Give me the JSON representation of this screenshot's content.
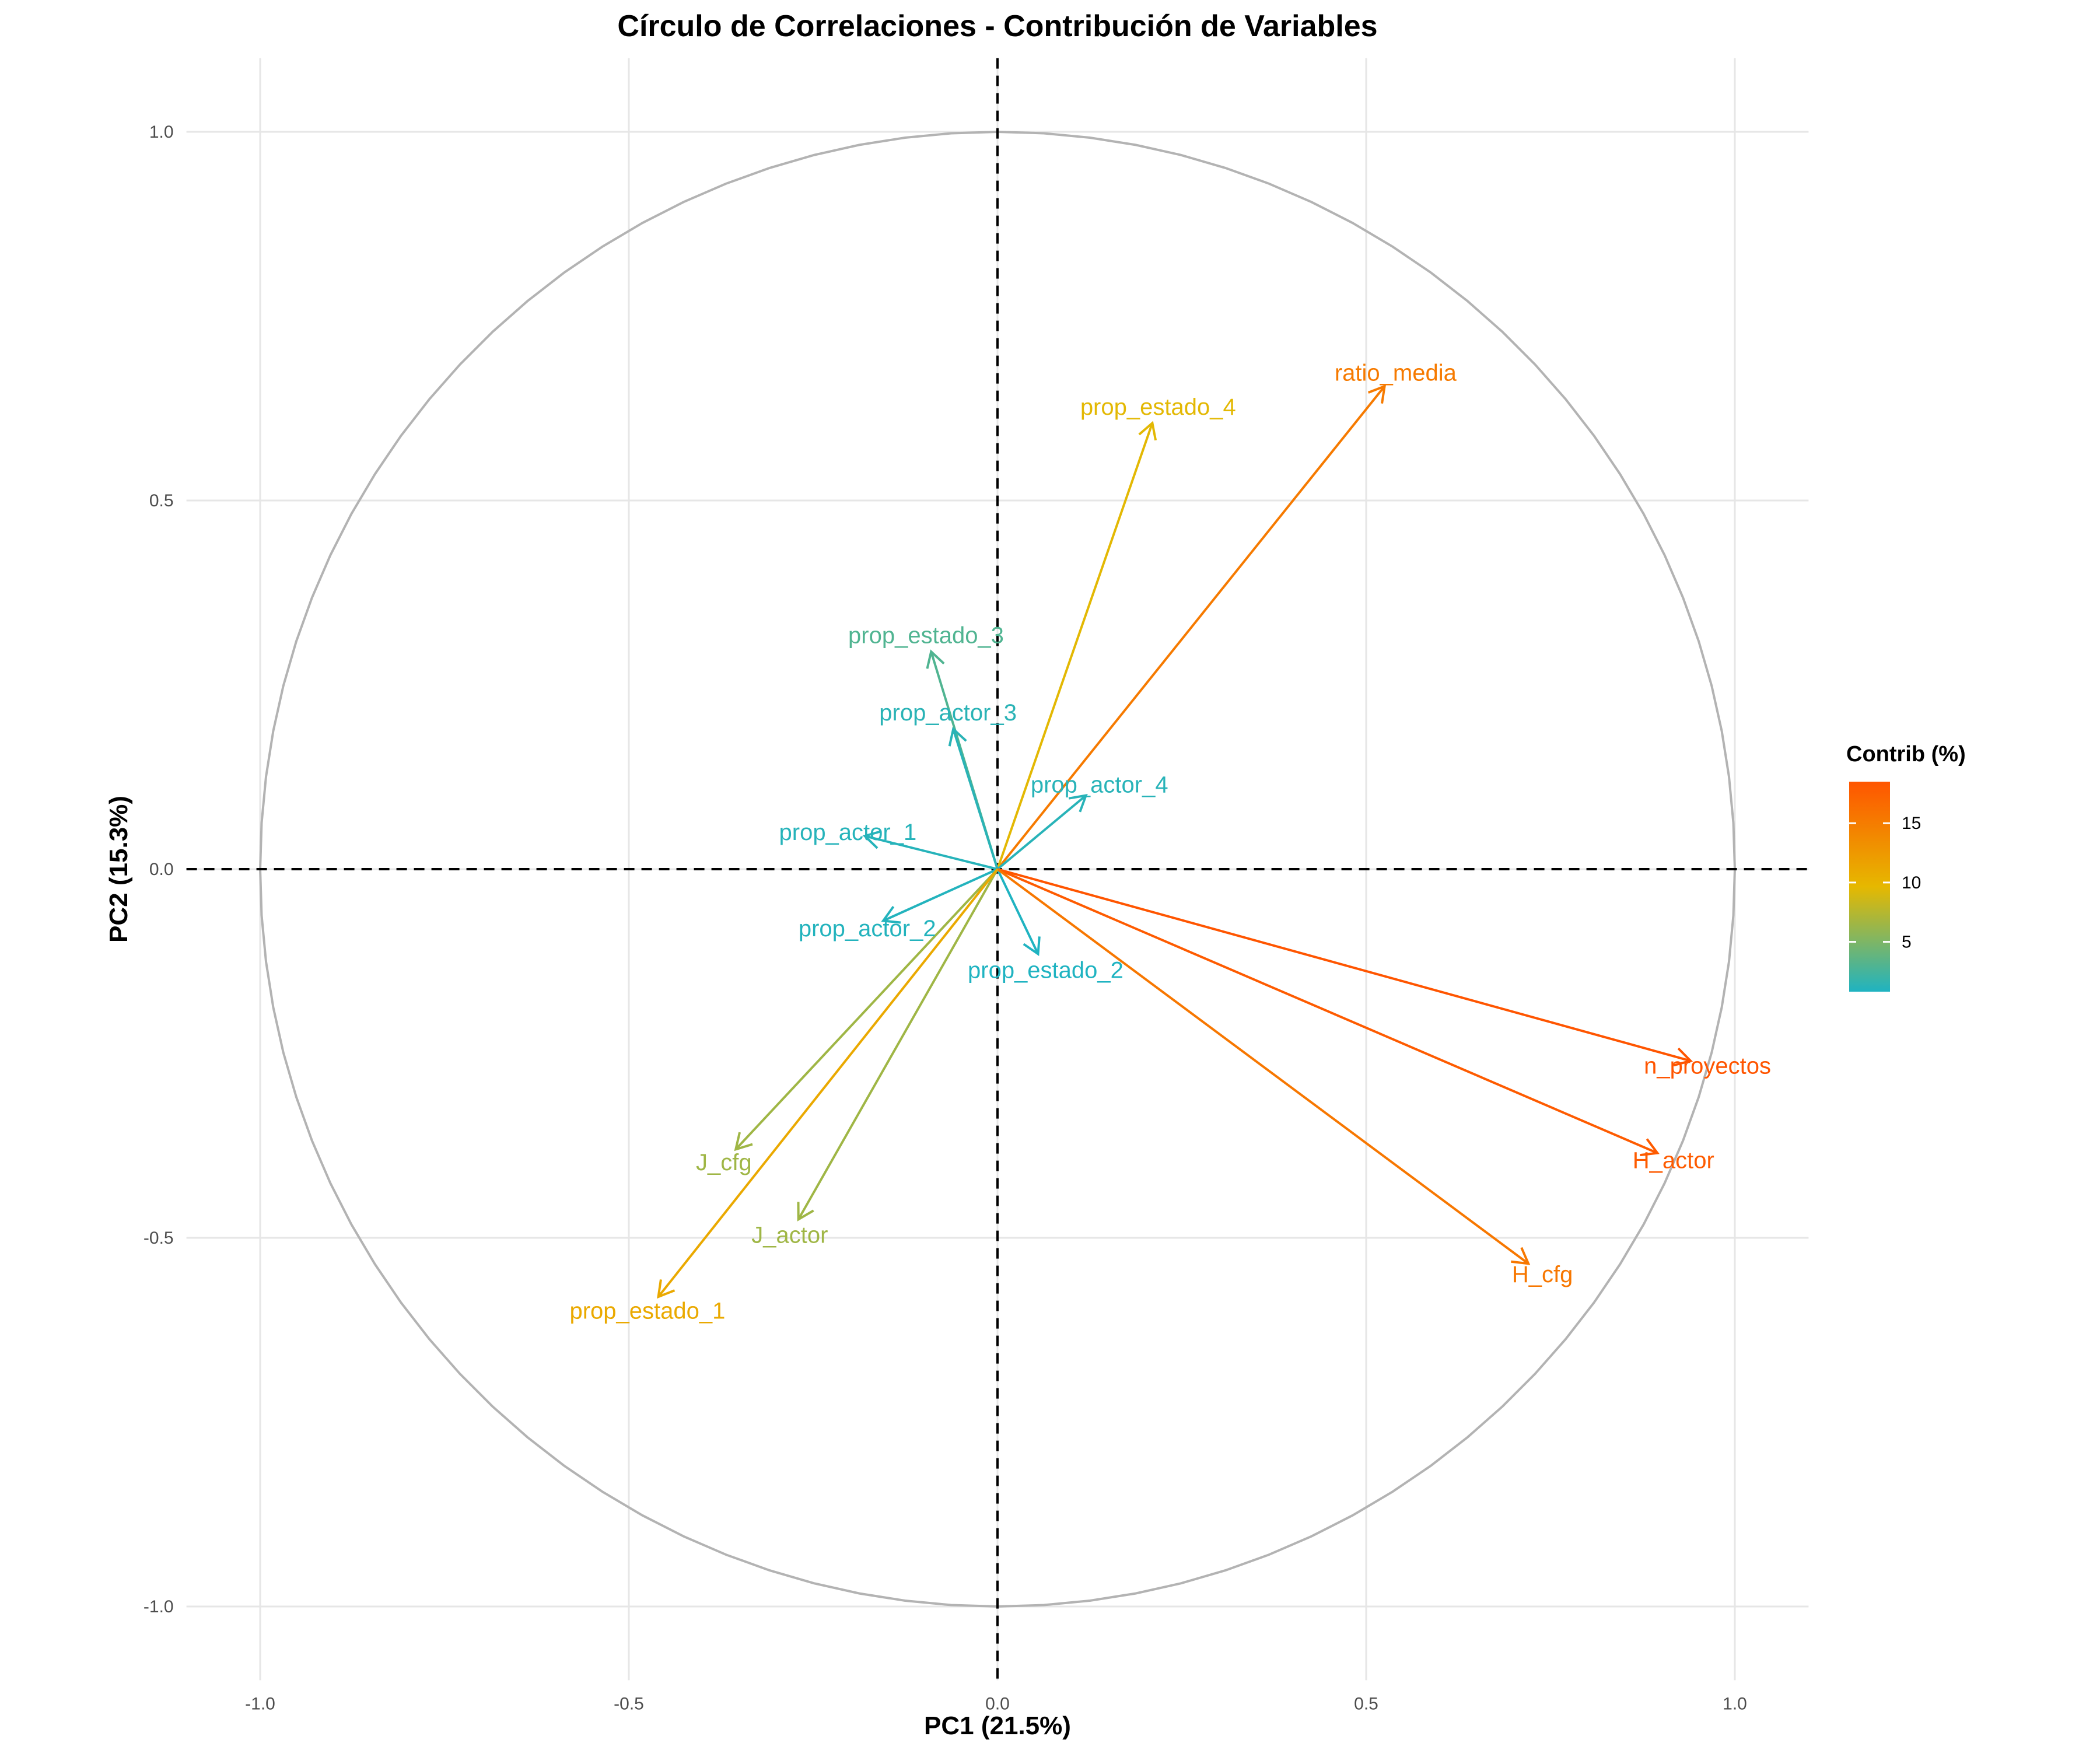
{
  "chart_data": {
    "type": "biplot",
    "title": "Círculo de Correlaciones - Contribución de Variables",
    "xlabel": "PC1 (21.5%)",
    "ylabel": "PC2 (15.3%)",
    "xlim": [
      -1.1,
      1.1
    ],
    "ylim": [
      -1.1,
      1.1
    ],
    "x_ticks": [
      -1.0,
      -0.5,
      0.0,
      0.5,
      1.0
    ],
    "y_ticks": [
      -1.0,
      -0.5,
      0.0,
      0.5,
      1.0
    ],
    "x_tick_labels": [
      "-1.0",
      "-0.5",
      "0.0",
      "0.5",
      "1.0"
    ],
    "y_tick_labels": [
      "-1.0",
      "-0.5",
      "0.0",
      "0.5",
      "1.0"
    ],
    "grid": true,
    "unit_circle": true,
    "reference_lines": "dashed at x=0 and y=0",
    "legend": {
      "title": "Contrib (%)",
      "placement": "right",
      "ticks": [
        5,
        10,
        15
      ],
      "tick_labels": [
        "5",
        "10",
        "15"
      ],
      "range": [
        0.8,
        18.5
      ],
      "colors": [
        "#1fb3c1",
        "#e6b800",
        "#ff5500"
      ]
    },
    "variables": [
      {
        "name": "ratio_media",
        "x": 0.525,
        "y": 0.655,
        "contrib": 15.2
      },
      {
        "name": "prop_estado_4",
        "x": 0.21,
        "y": 0.605,
        "contrib": 9.5
      },
      {
        "name": "prop_estado_3",
        "x": -0.09,
        "y": 0.295,
        "contrib": 3.0
      },
      {
        "name": "prop_actor_3",
        "x": -0.06,
        "y": 0.19,
        "contrib": 1.3
      },
      {
        "name": "prop_actor_4",
        "x": 0.12,
        "y": 0.1,
        "contrib": 1.2
      },
      {
        "name": "prop_actor_1",
        "x": -0.18,
        "y": 0.045,
        "contrib": 1.1
      },
      {
        "name": "prop_actor_2",
        "x": -0.155,
        "y": -0.07,
        "contrib": 1.0
      },
      {
        "name": "prop_estado_2",
        "x": 0.055,
        "y": -0.115,
        "contrib": 0.8
      },
      {
        "name": "n_proyectos",
        "x": 0.94,
        "y": -0.26,
        "contrib": 18.5
      },
      {
        "name": "H_actor",
        "x": 0.895,
        "y": -0.385,
        "contrib": 18.0
      },
      {
        "name": "H_cfg",
        "x": 0.72,
        "y": -0.535,
        "contrib": 15.5
      },
      {
        "name": "J_cfg",
        "x": -0.355,
        "y": -0.38,
        "contrib": 6.5
      },
      {
        "name": "J_actor",
        "x": -0.27,
        "y": -0.475,
        "contrib": 6.5
      },
      {
        "name": "prop_estado_1",
        "x": -0.46,
        "y": -0.58,
        "contrib": 11.0
      }
    ]
  }
}
